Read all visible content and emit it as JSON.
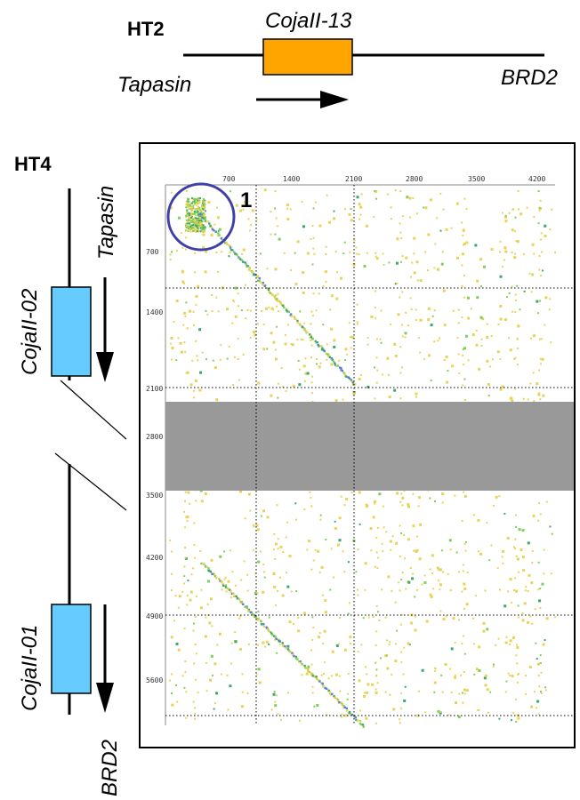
{
  "ht2": {
    "label": "HT2",
    "gene": "CojaII-13",
    "left_flank": "Tapasin",
    "right_flank": "BRD2",
    "gene_color": "#ffa500"
  },
  "ht4": {
    "label": "HT4",
    "top_flank": "Tapasin",
    "bottom_flank": "BRD2",
    "gene_upper": "CojaII-02",
    "gene_lower": "CojaII-01",
    "gene_color": "#66ccff"
  },
  "dotplot": {
    "x_ticks": [
      "700",
      "1400",
      "2100",
      "2800",
      "3500",
      "4200"
    ],
    "y_ticks": [
      "700",
      "1400",
      "2100",
      "2800",
      "3500",
      "4200",
      "4900",
      "5600"
    ],
    "region_label": "1",
    "circle_color": "#3f3fa8",
    "gap_color": "#999999",
    "dot_colors": [
      "#e8d35a",
      "#d9c94a",
      "#7fcf5a",
      "#3aa86a",
      "#5a7fd9"
    ]
  }
}
